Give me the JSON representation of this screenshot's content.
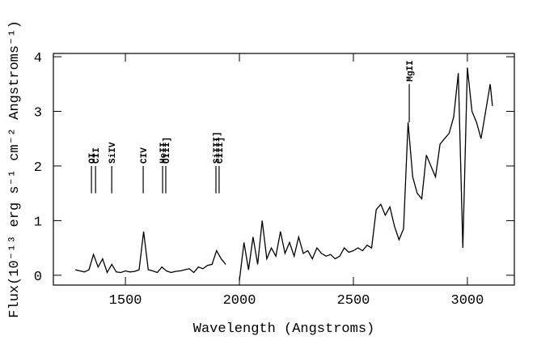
{
  "chart_data": {
    "type": "line",
    "xlabel": "Wavelength (Angstroms)",
    "ylabel": "Flux(10⁻¹³ erg s⁻¹ cm⁻² Angstroms⁻¹)",
    "xlim": [
      1184,
      3206
    ],
    "ylim": [
      -0.18,
      4.06
    ],
    "xticks": [
      1500,
      2000,
      2500,
      3000
    ],
    "yticks": [
      0,
      1,
      2,
      3,
      4
    ],
    "x": [
      1280,
      1300,
      1320,
      1340,
      1360,
      1380,
      1400,
      1420,
      1440,
      1460,
      1480,
      1500,
      1520,
      1540,
      1560,
      1580,
      1600,
      1620,
      1640,
      1660,
      1680,
      1700,
      1720,
      1740,
      1760,
      1780,
      1800,
      1820,
      1840,
      1860,
      1880,
      1900,
      1920,
      1940,
      1970,
      2000,
      2020,
      2040,
      2060,
      2080,
      2100,
      2120,
      2140,
      2160,
      2180,
      2200,
      2220,
      2240,
      2260,
      2280,
      2300,
      2320,
      2340,
      2360,
      2380,
      2400,
      2420,
      2440,
      2460,
      2480,
      2500,
      2520,
      2540,
      2560,
      2580,
      2600,
      2620,
      2640,
      2660,
      2680,
      2700,
      2720,
      2740,
      2760,
      2780,
      2800,
      2820,
      2840,
      2860,
      2880,
      2900,
      2920,
      2940,
      2960,
      2980,
      3000,
      3020,
      3040,
      3060,
      3080,
      3100,
      3110
    ],
    "series": [
      {
        "name": "Flux",
        "color": "#000000",
        "values": [
          0.1,
          0.08,
          0.06,
          0.1,
          0.38,
          0.15,
          0.3,
          0.05,
          0.2,
          0.06,
          0.05,
          0.08,
          0.06,
          0.07,
          0.1,
          0.8,
          0.1,
          0.08,
          0.05,
          0.15,
          0.08,
          0.05,
          0.07,
          0.08,
          0.1,
          0.12,
          0.05,
          0.15,
          0.12,
          0.18,
          0.2,
          0.45,
          0.3,
          0.2,
          null,
          -0.1,
          0.6,
          0.1,
          0.7,
          0.2,
          1.0,
          0.3,
          0.5,
          0.35,
          0.8,
          0.4,
          0.6,
          0.35,
          0.7,
          0.4,
          0.45,
          0.3,
          0.5,
          0.4,
          0.35,
          0.38,
          0.3,
          0.35,
          0.5,
          0.42,
          0.45,
          0.5,
          0.45,
          0.55,
          0.5,
          1.2,
          1.3,
          1.1,
          1.25,
          0.9,
          0.65,
          0.85,
          2.8,
          1.8,
          1.5,
          1.4,
          2.2,
          2.0,
          1.8,
          2.4,
          2.5,
          2.6,
          2.9,
          3.7,
          0.5,
          3.8,
          3.0,
          2.8,
          2.5,
          3.0,
          3.5,
          3.1
        ]
      }
    ],
    "annotations": [
      {
        "label": "OI",
        "x": 1351,
        "y_start": 1.5,
        "y_end": 2.0
      },
      {
        "label": "CII",
        "x": 1369,
        "y_start": 1.5,
        "y_end": 2.0
      },
      {
        "label": "SiIV",
        "x": 1440,
        "y_start": 1.5,
        "y_end": 2.0
      },
      {
        "label": "CIV",
        "x": 1578,
        "y_start": 1.5,
        "y_end": 2.0
      },
      {
        "label": "HeII",
        "x": 1663,
        "y_start": 1.5,
        "y_end": 2.0
      },
      {
        "label": "OIII]",
        "x": 1677,
        "y_start": 1.5,
        "y_end": 2.0
      },
      {
        "label": "SiIII]",
        "x": 1897,
        "y_start": 1.5,
        "y_end": 2.0
      },
      {
        "label": "CIII]",
        "x": 1911,
        "y_start": 1.5,
        "y_end": 2.0
      },
      {
        "label": "MgII",
        "x": 2745,
        "y_start": 2.8,
        "y_end": 3.5
      }
    ]
  }
}
